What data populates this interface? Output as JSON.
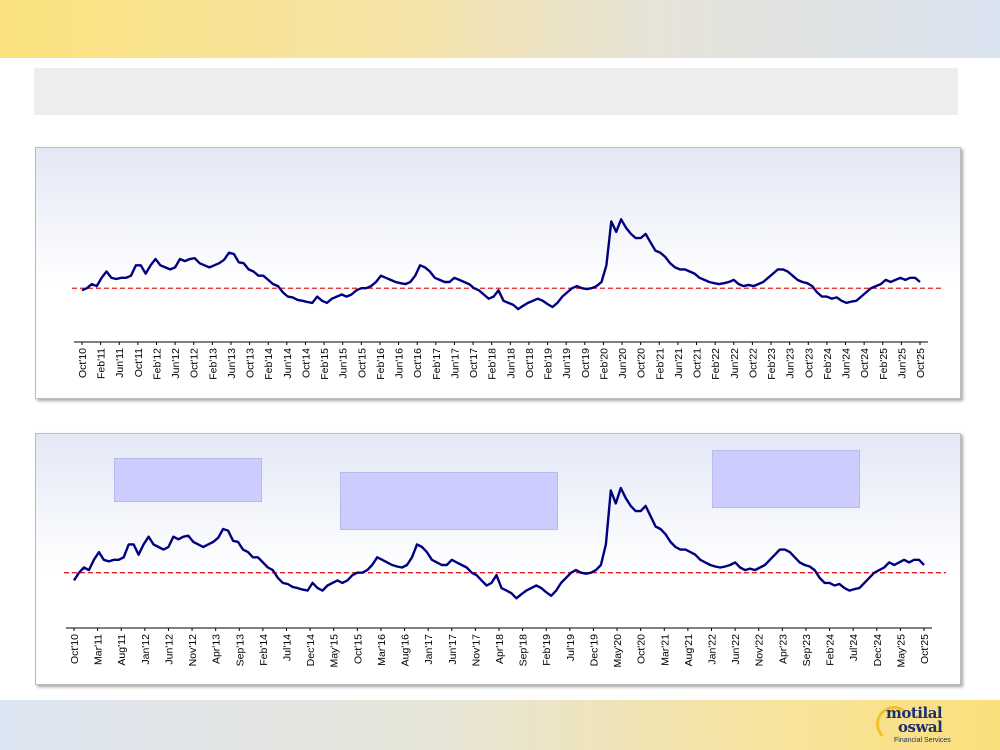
{
  "chart_data": [
    {
      "type": "line",
      "line_color": "#000080",
      "reference_line_color": "#e02020",
      "ylim": [
        -1.0,
        2.4
      ],
      "reference_value": 0.0,
      "tick_labels": [
        "Oct'10",
        "Feb'11",
        "Jun'11",
        "Oct'11",
        "Feb'12",
        "Jun'12",
        "Oct'12",
        "Feb'13",
        "Jun'13",
        "Oct'13",
        "Feb'14",
        "Jun'14",
        "Oct'14",
        "Feb'15",
        "Jun'15",
        "Oct'15",
        "Feb'16",
        "Jun'16",
        "Oct'16",
        "Feb'17",
        "Jun'17",
        "Oct'17",
        "Feb'18",
        "Jun'18",
        "Oct'18",
        "Feb'19",
        "Jun'19",
        "Oct'19",
        "Feb'20",
        "Jun'20",
        "Oct'20",
        "Feb'21",
        "Jun'21",
        "Oct'21",
        "Feb'22",
        "Jun'22",
        "Oct'22",
        "Feb'23",
        "Jun'23",
        "Oct'23",
        "Feb'24",
        "Jun'24",
        "Oct'24",
        "Feb'25",
        "Jun'25",
        "Oct'25"
      ],
      "points_per_tick": 4,
      "values": [
        -0.05,
        0.0,
        0.1,
        0.05,
        0.25,
        0.4,
        0.25,
        0.22,
        0.25,
        0.25,
        0.3,
        0.55,
        0.55,
        0.35,
        0.55,
        0.7,
        0.55,
        0.5,
        0.45,
        0.5,
        0.7,
        0.65,
        0.7,
        0.72,
        0.6,
        0.55,
        0.5,
        0.55,
        0.6,
        0.68,
        0.85,
        0.82,
        0.62,
        0.6,
        0.45,
        0.4,
        0.3,
        0.3,
        0.2,
        0.1,
        0.05,
        -0.1,
        -0.2,
        -0.22,
        -0.28,
        -0.3,
        -0.33,
        -0.35,
        -0.2,
        -0.3,
        -0.35,
        -0.25,
        -0.2,
        -0.15,
        -0.2,
        -0.15,
        -0.05,
        0.0,
        0.0,
        0.05,
        0.15,
        0.3,
        0.25,
        0.2,
        0.15,
        0.12,
        0.1,
        0.15,
        0.3,
        0.55,
        0.5,
        0.4,
        0.25,
        0.2,
        0.15,
        0.15,
        0.25,
        0.2,
        0.15,
        0.1,
        0.0,
        -0.05,
        -0.15,
        -0.25,
        -0.2,
        -0.05,
        -0.3,
        -0.35,
        -0.4,
        -0.5,
        -0.42,
        -0.35,
        -0.3,
        -0.25,
        -0.3,
        -0.38,
        -0.45,
        -0.35,
        -0.2,
        -0.1,
        0.0,
        0.05,
        0.0,
        -0.02,
        0.0,
        0.05,
        0.15,
        0.55,
        1.6,
        1.35,
        1.65,
        1.45,
        1.3,
        1.2,
        1.2,
        1.3,
        1.1,
        0.9,
        0.85,
        0.75,
        0.6,
        0.5,
        0.45,
        0.45,
        0.4,
        0.35,
        0.25,
        0.2,
        0.15,
        0.12,
        0.1,
        0.12,
        0.15,
        0.2,
        0.1,
        0.05,
        0.08,
        0.05,
        0.1,
        0.15,
        0.25,
        0.35,
        0.45,
        0.45,
        0.4,
        0.3,
        0.2,
        0.15,
        0.12,
        0.05,
        -0.1,
        -0.2,
        -0.2,
        -0.25,
        -0.22,
        -0.3,
        -0.35,
        -0.32,
        -0.3,
        -0.2,
        -0.1,
        0.0,
        0.05,
        0.1,
        0.2,
        0.15,
        0.2,
        0.25,
        0.2,
        0.25,
        0.25,
        0.15
      ]
    },
    {
      "type": "line",
      "line_color": "#000080",
      "reference_line_color": "#e02020",
      "ylim": [
        -1.0,
        2.0
      ],
      "reference_value": 0.0,
      "tick_labels": [
        "Oct'10",
        "Mar'11",
        "Aug'11",
        "Jan'12",
        "Jun'12",
        "Nov'12",
        "Apr'13",
        "Sep'13",
        "Feb'14",
        "Jul'14",
        "Dec'14",
        "May'15",
        "Oct'15",
        "Mar'16",
        "Aug'16",
        "Jan'17",
        "Jun'17",
        "Nov'17",
        "Apr'18",
        "Sep'18",
        "Feb'19",
        "Jul'19",
        "Dec'19",
        "May'20",
        "Oct'20",
        "Mar'21",
        "Aug'21",
        "Jan'22",
        "Jun'22",
        "Nov'22",
        "Apr'23",
        "Sep'23",
        "Feb'24",
        "Jul'24",
        "Dec'24",
        "May'25",
        "Oct'25"
      ],
      "points_per_tick": 5,
      "values": [
        -0.15,
        0.0,
        0.1,
        0.05,
        0.25,
        0.4,
        0.25,
        0.22,
        0.25,
        0.25,
        0.3,
        0.55,
        0.55,
        0.35,
        0.55,
        0.7,
        0.55,
        0.5,
        0.45,
        0.5,
        0.7,
        0.65,
        0.7,
        0.72,
        0.6,
        0.55,
        0.5,
        0.55,
        0.6,
        0.68,
        0.85,
        0.82,
        0.62,
        0.6,
        0.45,
        0.4,
        0.3,
        0.3,
        0.2,
        0.1,
        0.05,
        -0.1,
        -0.2,
        -0.22,
        -0.28,
        -0.3,
        -0.33,
        -0.35,
        -0.2,
        -0.3,
        -0.35,
        -0.25,
        -0.2,
        -0.15,
        -0.2,
        -0.15,
        -0.05,
        0.0,
        0.0,
        0.05,
        0.15,
        0.3,
        0.25,
        0.2,
        0.15,
        0.12,
        0.1,
        0.15,
        0.3,
        0.55,
        0.5,
        0.4,
        0.25,
        0.2,
        0.15,
        0.15,
        0.25,
        0.2,
        0.15,
        0.1,
        0.0,
        -0.05,
        -0.15,
        -0.25,
        -0.2,
        -0.05,
        -0.3,
        -0.35,
        -0.4,
        -0.5,
        -0.42,
        -0.35,
        -0.3,
        -0.25,
        -0.3,
        -0.38,
        -0.45,
        -0.35,
        -0.2,
        -0.1,
        0.0,
        0.05,
        0.0,
        -0.02,
        0.0,
        0.05,
        0.15,
        0.55,
        1.6,
        1.35,
        1.65,
        1.45,
        1.3,
        1.2,
        1.2,
        1.3,
        1.1,
        0.9,
        0.85,
        0.75,
        0.6,
        0.5,
        0.45,
        0.45,
        0.4,
        0.35,
        0.25,
        0.2,
        0.15,
        0.12,
        0.1,
        0.12,
        0.15,
        0.2,
        0.1,
        0.05,
        0.08,
        0.05,
        0.1,
        0.15,
        0.25,
        0.35,
        0.45,
        0.45,
        0.4,
        0.3,
        0.2,
        0.15,
        0.12,
        0.05,
        -0.1,
        -0.2,
        -0.2,
        -0.25,
        -0.22,
        -0.3,
        -0.35,
        -0.32,
        -0.3,
        -0.2,
        -0.1,
        0.0,
        0.05,
        0.1,
        0.2,
        0.15,
        0.2,
        0.25,
        0.2,
        0.25,
        0.25,
        0.15
      ]
    }
  ],
  "logo": {
    "line1": "motilal",
    "line2": "oswal",
    "line3": "Financial Services"
  }
}
